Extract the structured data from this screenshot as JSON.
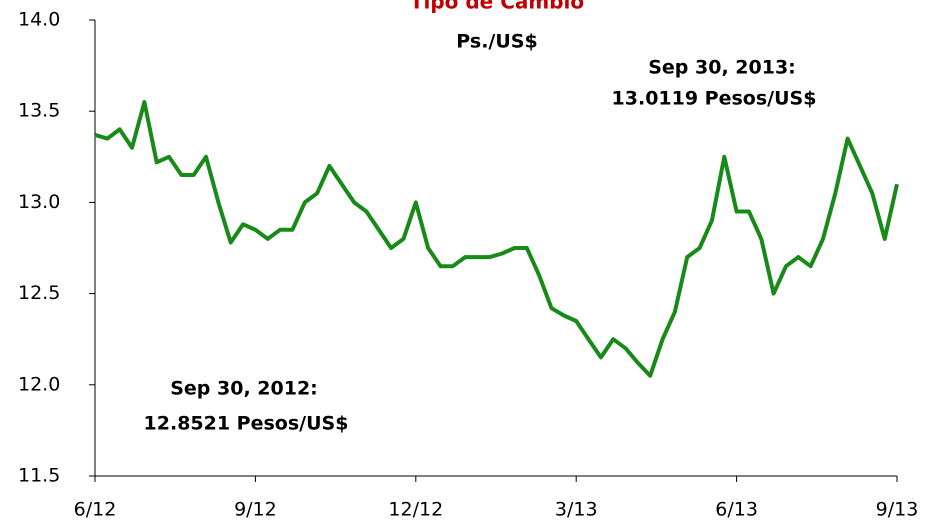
{
  "chart_data": {
    "type": "line",
    "title": "Tipo de Cambio",
    "subtitle": "Ps./US$",
    "annotations": [
      "Sep 30, 2013:",
      "13.0119 Pesos/US$",
      "Sep 30, 2012:",
      "12.8521 Pesos/US$"
    ],
    "categories": [
      "6/12",
      null,
      null,
      null,
      null,
      null,
      null,
      null,
      null,
      null,
      null,
      null,
      null,
      "9/12",
      null,
      null,
      null,
      null,
      null,
      null,
      null,
      null,
      null,
      null,
      null,
      null,
      "12/12",
      null,
      null,
      null,
      null,
      null,
      null,
      null,
      null,
      null,
      null,
      null,
      null,
      "3/13",
      null,
      null,
      null,
      null,
      null,
      null,
      null,
      null,
      null,
      null,
      null,
      null,
      "6/13",
      null,
      null,
      null,
      null,
      null,
      null,
      null,
      null,
      null,
      null,
      null,
      null,
      "9/13"
    ],
    "series": [
      {
        "name": "Tipo de Cambio",
        "color": "#178a17",
        "values": [
          13.37,
          13.35,
          13.4,
          13.3,
          13.55,
          13.22,
          13.25,
          13.15,
          13.15,
          13.25,
          13.0,
          12.78,
          12.88,
          12.85,
          12.8,
          12.85,
          12.85,
          13.0,
          13.05,
          13.2,
          13.1,
          13.0,
          12.95,
          12.85,
          12.75,
          12.8,
          13.0,
          12.75,
          12.65,
          12.65,
          12.7,
          12.7,
          12.7,
          12.72,
          12.75,
          12.75,
          12.6,
          12.42,
          12.38,
          12.35,
          12.25,
          12.15,
          12.25,
          12.2,
          12.12,
          12.05,
          12.25,
          12.4,
          12.7,
          12.75,
          12.9,
          13.25,
          12.95,
          12.95,
          12.8,
          12.5,
          12.65,
          12.7,
          12.65,
          12.8,
          13.05,
          13.35,
          13.2,
          13.05,
          12.8,
          13.1
        ]
      }
    ],
    "ylim": [
      11.5,
      14.0
    ],
    "yticks": [
      {
        "value": 11.5,
        "label": "11.5"
      },
      {
        "value": 12.0,
        "label": "12.0"
      },
      {
        "value": 12.5,
        "label": "12.5"
      },
      {
        "value": 13.0,
        "label": "13.0"
      },
      {
        "value": 13.5,
        "label": "13.5"
      },
      {
        "value": 14.0,
        "label": "14.0"
      }
    ],
    "title_color": "#c00000"
  }
}
